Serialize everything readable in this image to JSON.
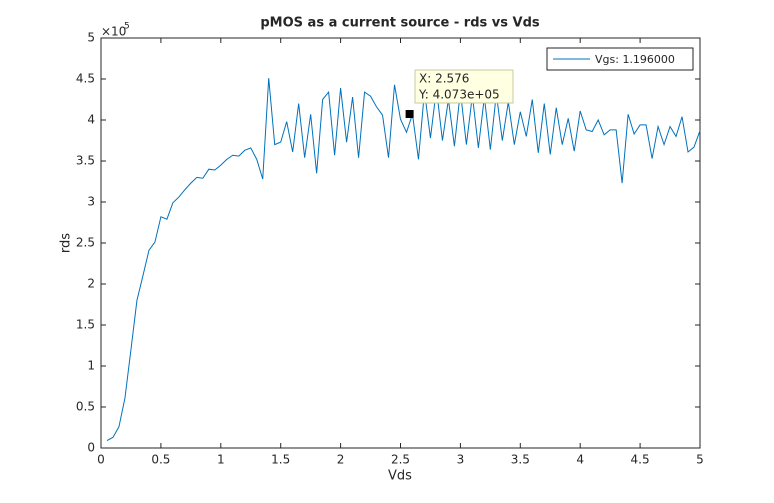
{
  "chart_data": {
    "type": "line",
    "title": "pMOS as a current source - rds vs Vds",
    "x_label": "Vds",
    "y_label": "rds",
    "y_exponent": {
      "base": "×10",
      "power": "5"
    },
    "x": [
      0.05,
      0.1,
      0.15,
      0.2,
      0.25,
      0.3,
      0.35,
      0.4,
      0.45,
      0.5,
      0.55,
      0.6,
      0.65,
      0.7,
      0.75,
      0.8,
      0.85,
      0.9,
      0.95,
      1.0,
      1.05,
      1.1,
      1.15,
      1.2,
      1.25,
      1.3,
      1.35,
      1.4,
      1.45,
      1.5,
      1.55,
      1.6,
      1.65,
      1.7,
      1.75,
      1.8,
      1.85,
      1.9,
      1.95,
      2.0,
      2.05,
      2.1,
      2.15,
      2.2,
      2.25,
      2.3,
      2.35,
      2.4,
      2.45,
      2.5,
      2.55,
      2.6,
      2.65,
      2.7,
      2.75,
      2.8,
      2.85,
      2.9,
      2.95,
      3.0,
      3.05,
      3.1,
      3.15,
      3.2,
      3.25,
      3.3,
      3.35,
      3.4,
      3.45,
      3.5,
      3.55,
      3.6,
      3.65,
      3.7,
      3.75,
      3.8,
      3.85,
      3.9,
      3.95,
      4.0,
      4.05,
      4.1,
      4.15,
      4.2,
      4.25,
      4.3,
      4.35,
      4.4,
      4.45,
      4.5,
      4.55,
      4.6,
      4.65,
      4.7,
      4.75,
      4.8,
      4.85,
      4.9,
      4.95,
      5.0
    ],
    "series": [
      {
        "name": "Vgs: 1.196000",
        "color": "#0072bd",
        "values": [
          0.09,
          0.13,
          0.26,
          0.61,
          1.2,
          1.8,
          2.1,
          2.41,
          2.51,
          2.82,
          2.79,
          2.99,
          3.06,
          3.15,
          3.23,
          3.3,
          3.29,
          3.4,
          3.39,
          3.45,
          3.52,
          3.57,
          3.56,
          3.63,
          3.66,
          3.52,
          3.28,
          4.51,
          3.7,
          3.73,
          3.98,
          3.61,
          4.2,
          3.54,
          4.07,
          3.35,
          4.25,
          4.34,
          3.57,
          4.39,
          3.73,
          4.28,
          3.54,
          4.34,
          4.29,
          4.16,
          4.06,
          3.54,
          4.43,
          4.01,
          3.85,
          4.07,
          3.52,
          4.35,
          3.78,
          4.38,
          3.75,
          4.25,
          3.68,
          4.35,
          3.7,
          4.3,
          3.66,
          4.28,
          3.64,
          4.32,
          3.75,
          4.22,
          3.7,
          4.1,
          3.8,
          4.25,
          3.6,
          4.2,
          3.58,
          4.15,
          3.7,
          4.02,
          3.62,
          4.11,
          3.88,
          3.86,
          4.0,
          3.82,
          3.88,
          3.88,
          3.23,
          4.07,
          3.83,
          3.94,
          3.94,
          3.53,
          3.92,
          3.7,
          3.92,
          3.8,
          4.04,
          3.61,
          3.67,
          3.87
        ]
      }
    ],
    "xlim": [
      0,
      5
    ],
    "ylim": [
      0,
      5
    ],
    "xticks": [
      0,
      0.5,
      1,
      1.5,
      2,
      2.5,
      3,
      3.5,
      4,
      4.5,
      5
    ],
    "yticks": [
      0,
      0.5,
      1,
      1.5,
      2,
      2.5,
      3,
      3.5,
      4,
      4.5,
      5
    ],
    "legend": "upper right",
    "datatip": {
      "x": 2.576,
      "y": 4.073,
      "x_text": "X: 2.576",
      "y_text": "Y: 4.073e+05"
    }
  }
}
